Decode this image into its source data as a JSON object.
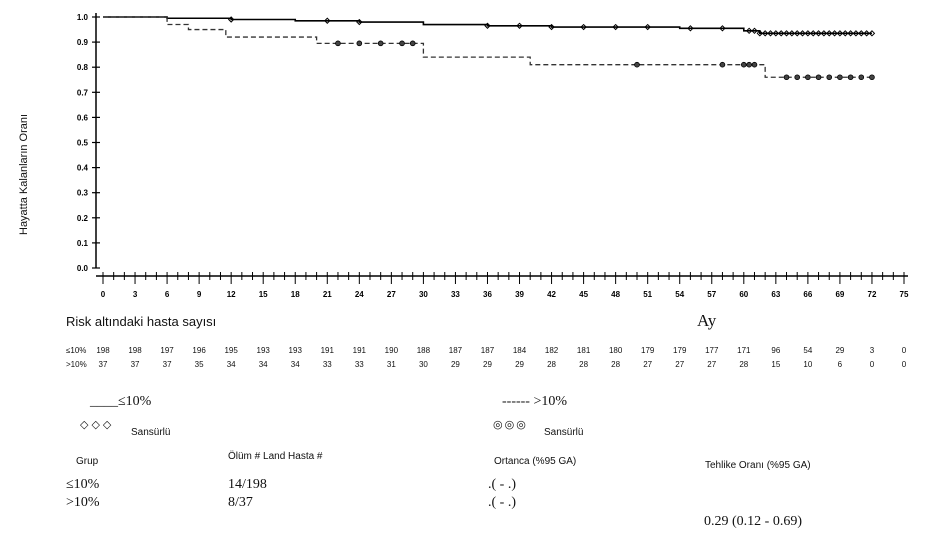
{
  "chart_data": {
    "type": "line",
    "ylabel": "Hayatta Kalanların Oranı",
    "xlabel": "Ay",
    "xlim": [
      0,
      75
    ],
    "ylim": [
      0,
      1.0
    ],
    "x_ticks": [
      "0",
      "3",
      "6",
      "9",
      "12",
      "15",
      "18",
      "21",
      "24",
      "27",
      "30",
      "33",
      "36",
      "39",
      "42",
      "45",
      "48",
      "51",
      "54",
      "57",
      "60",
      "63",
      "66",
      "69",
      "72",
      "75"
    ],
    "y_ticks": [
      "0.0",
      "0.1",
      "0.2",
      "0.3",
      "0.4",
      "0.5",
      "0.6",
      "0.7",
      "0.8",
      "0.9",
      "1.0"
    ],
    "grid": false,
    "series": [
      {
        "name": "≤10%",
        "style": "solid",
        "color": "#000000",
        "steps": [
          [
            0,
            1.0
          ],
          [
            6,
            0.995
          ],
          [
            12,
            0.99
          ],
          [
            18,
            0.985
          ],
          [
            24,
            0.98
          ],
          [
            30,
            0.97
          ],
          [
            36,
            0.965
          ],
          [
            42,
            0.96
          ],
          [
            54,
            0.955
          ],
          [
            60,
            0.945
          ],
          [
            61.5,
            0.935
          ],
          [
            72,
            0.935
          ]
        ],
        "censored": [
          12,
          21,
          24,
          36,
          39,
          42,
          45,
          48,
          51,
          55,
          58,
          60.5,
          61,
          61.5,
          62,
          62.5,
          63,
          63.5,
          64,
          64.5,
          65,
          65.5,
          66,
          66.5,
          67,
          67.5,
          68,
          68.5,
          69,
          69.5,
          70,
          70.5,
          71,
          71.5,
          72
        ]
      },
      {
        "name": ">10%",
        "style": "dashed",
        "color": "#333333",
        "steps": [
          [
            0,
            1.0
          ],
          [
            6,
            0.97
          ],
          [
            8,
            0.95
          ],
          [
            11.5,
            0.92
          ],
          [
            20,
            0.895
          ],
          [
            30,
            0.84
          ],
          [
            40,
            0.81
          ],
          [
            60,
            0.81
          ],
          [
            62,
            0.76
          ],
          [
            72,
            0.76
          ]
        ],
        "censored": [
          22,
          24,
          26,
          28,
          29,
          50,
          58,
          60,
          60.5,
          61,
          64,
          65,
          66,
          67,
          68,
          69,
          70,
          71,
          72
        ]
      }
    ]
  },
  "risk_table": {
    "title": "Risk altındaki hasta sayısı",
    "rows": [
      {
        "label": "≤10%",
        "values": [
          "198",
          "198",
          "197",
          "196",
          "195",
          "193",
          "193",
          "191",
          "191",
          "190",
          "188",
          "187",
          "187",
          "184",
          "182",
          "181",
          "180",
          "179",
          "179",
          "177",
          "171",
          "96",
          "54",
          "29",
          "3",
          "0"
        ]
      },
      {
        "label": ">10%",
        "values": [
          "37",
          "37",
          "37",
          "35",
          "34",
          "34",
          "34",
          "33",
          "33",
          "31",
          "30",
          "29",
          "29",
          "29",
          "28",
          "28",
          "28",
          "27",
          "27",
          "27",
          "28",
          "15",
          "10",
          "6",
          "0",
          "0"
        ]
      }
    ]
  },
  "legend": {
    "group1_line": "____≤10%",
    "group1_censor_marks": "◇◇◇",
    "group1_censor_label": "Sansürlü",
    "group2_line": "------ >10%",
    "group2_censor_marks": "◎◎◎",
    "group2_censor_label": "Sansürlü"
  },
  "summary_table": {
    "headers": {
      "group": "Grup",
      "deaths": "Ölüm # Land Hasta #",
      "median": "Ortanca (%95 GA)",
      "hazard": "Tehlike Oranı (%95 GA)"
    },
    "rows": [
      {
        "group": "≤10%",
        "deaths": "14/198",
        "median": ".( - .)"
      },
      {
        "group": ">10%",
        "deaths": "8/37",
        "median": ".( - .)"
      }
    ],
    "hazard_ratio": "0.29 (0.12 - 0.69)"
  }
}
